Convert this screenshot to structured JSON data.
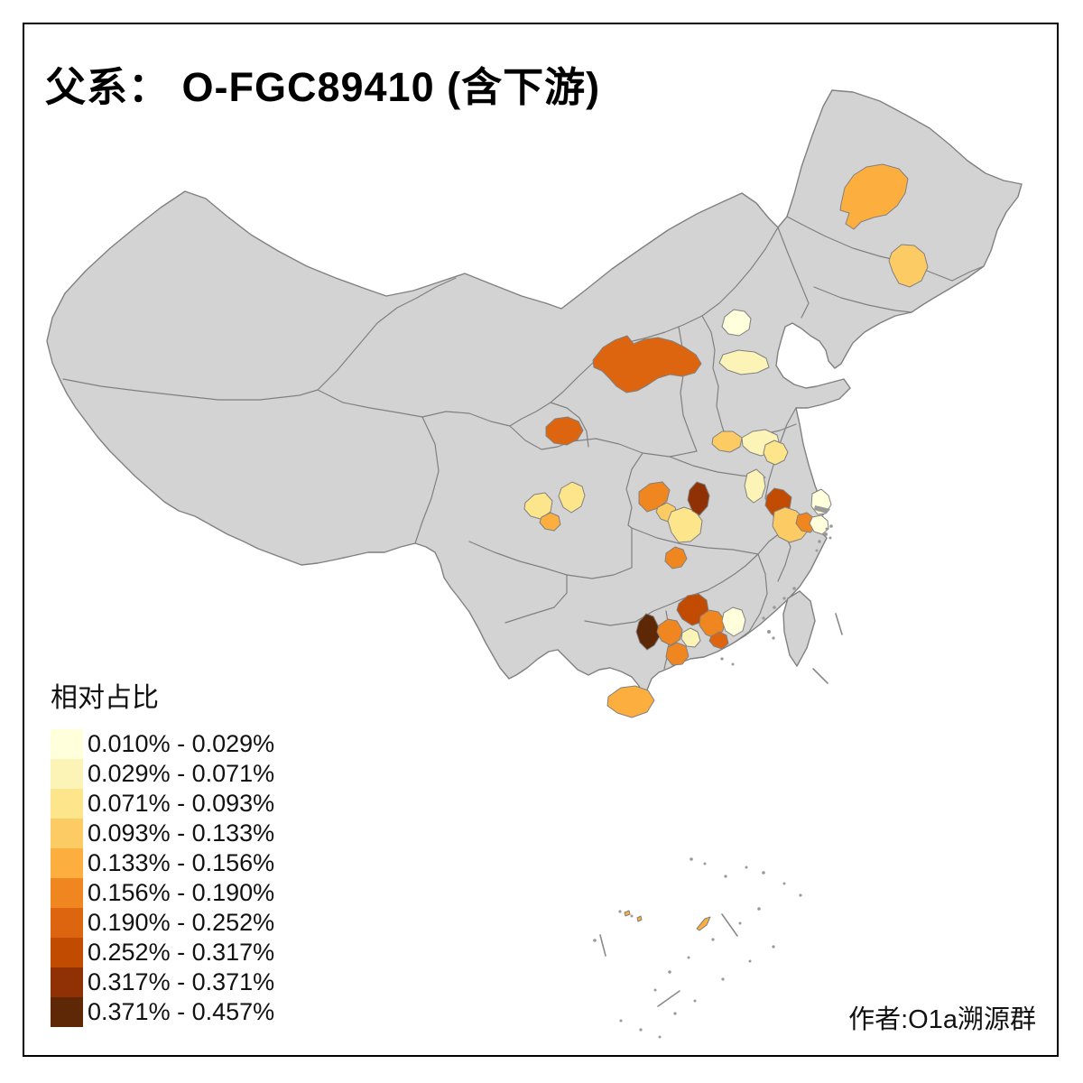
{
  "title": "父系： O-FGC89410 (含下游)",
  "credit": "作者:O1a溯源群",
  "legend": {
    "title": "相对占比",
    "bins": [
      {
        "label": "0.010% - 0.029%",
        "color": "#FFFFDC"
      },
      {
        "label": "0.029% - 0.071%",
        "color": "#FCF3B6"
      },
      {
        "label": "0.071% - 0.093%",
        "color": "#FDE58B"
      },
      {
        "label": "0.093% - 0.133%",
        "color": "#FDCB64"
      },
      {
        "label": "0.133% - 0.156%",
        "color": "#FCAE3E"
      },
      {
        "label": "0.156% - 0.190%",
        "color": "#F0861F"
      },
      {
        "label": "0.190% - 0.252%",
        "color": "#DD650F"
      },
      {
        "label": "0.252% - 0.317%",
        "color": "#C24B02"
      },
      {
        "label": "0.317% - 0.371%",
        "color": "#8F3104"
      },
      {
        "label": "0.371% - 0.457%",
        "color": "#5E2706"
      }
    ]
  },
  "map": {
    "land_color": "#d3d3d3",
    "boundary_color": "#808080",
    "sea_color": "#ffffff",
    "frame_color": "#000000",
    "regions": [
      {
        "id": "qiqihar",
        "bin": 5
      },
      {
        "id": "songyuan",
        "bin": 4
      },
      {
        "id": "beijing",
        "bin": 1
      },
      {
        "id": "tianjin",
        "bin": 2
      },
      {
        "id": "hetao-belt",
        "bin": 7
      },
      {
        "id": "lanzhou",
        "bin": 7
      },
      {
        "id": "zhengzhou",
        "bin": 4
      },
      {
        "id": "shangqiu",
        "bin": 2
      },
      {
        "id": "xuzhou",
        "bin": 3
      },
      {
        "id": "hefei",
        "bin": 2
      },
      {
        "id": "nanjing",
        "bin": 8
      },
      {
        "id": "wuxi",
        "bin": 4
      },
      {
        "id": "suzhou",
        "bin": 6
      },
      {
        "id": "nantong",
        "bin": 1
      },
      {
        "id": "shanghai",
        "bin": 1
      },
      {
        "id": "sichuan-west",
        "bin": 3
      },
      {
        "id": "sichuan-north",
        "bin": 3
      },
      {
        "id": "chengdu",
        "bin": 5
      },
      {
        "id": "yichang",
        "bin": 6
      },
      {
        "id": "jingzhou-west",
        "bin": 4
      },
      {
        "id": "jingzhou",
        "bin": 3
      },
      {
        "id": "jingmen",
        "bin": 9
      },
      {
        "id": "hunan-north",
        "bin": 6
      },
      {
        "id": "guangxi-east",
        "bin": 10
      },
      {
        "id": "qingyuan",
        "bin": 8
      },
      {
        "id": "wuzhou",
        "bin": 6
      },
      {
        "id": "jiangmen",
        "bin": 6
      },
      {
        "id": "guangzhou",
        "bin": 2
      },
      {
        "id": "huizhou",
        "bin": 6
      },
      {
        "id": "meizhou",
        "bin": 1
      },
      {
        "id": "dongguan",
        "bin": 7
      },
      {
        "id": "hainan",
        "bin": 5
      },
      {
        "id": "sansha-1",
        "bin": 5
      },
      {
        "id": "sansha-2",
        "bin": 5
      },
      {
        "id": "sansha-3",
        "bin": 5
      }
    ]
  }
}
